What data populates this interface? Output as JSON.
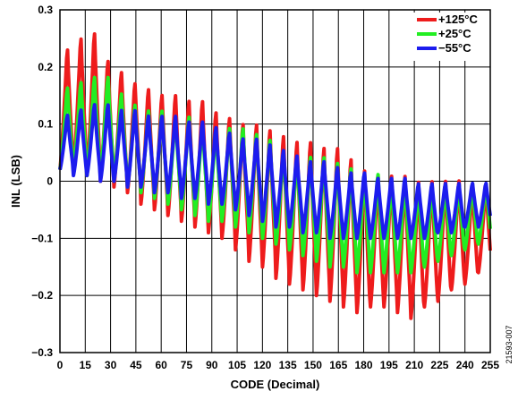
{
  "chart_data": {
    "type": "line",
    "xlabel": "CODE (Decimal)",
    "ylabel": "INL (LSB)",
    "xlim": [
      0,
      255
    ],
    "ylim": [
      -0.3,
      0.3
    ],
    "x_ticks": [
      0,
      15,
      30,
      45,
      60,
      75,
      90,
      105,
      120,
      135,
      150,
      165,
      180,
      195,
      210,
      225,
      240,
      255
    ],
    "y_ticks": [
      -0.3,
      -0.2,
      -0.1,
      0,
      0.1,
      0.2,
      0.3
    ],
    "y_tick_labels": [
      "−0.3",
      "−0.2",
      "−0.1",
      "0",
      "0.1",
      "0.2",
      "0.3"
    ],
    "grid": true,
    "legend_position": "top-right",
    "pattern_period_codes": 8,
    "series": [
      {
        "name": "+125°C",
        "color": "#ee1c1c",
        "peaks": [
          0.24,
          0.26,
          0.27,
          0.22,
          0.2,
          0.18,
          0.17,
          0.16,
          0.16,
          0.15,
          0.15,
          0.13,
          0.12,
          0.11,
          0.11,
          0.1,
          0.09,
          0.08,
          0.08,
          0.07,
          0.07,
          0.05,
          0.03,
          0.02,
          0.02,
          0.02,
          0.01,
          0.01,
          0.01,
          0.01,
          0.0,
          0.0
        ],
        "valleys": [
          0.02,
          0.02,
          0.01,
          0.0,
          -0.01,
          -0.02,
          -0.04,
          -0.05,
          -0.06,
          -0.07,
          -0.08,
          -0.09,
          -0.1,
          -0.12,
          -0.14,
          -0.15,
          -0.17,
          -0.18,
          -0.19,
          -0.2,
          -0.21,
          -0.22,
          -0.23,
          -0.22,
          -0.22,
          -0.23,
          -0.24,
          -0.22,
          -0.21,
          -0.19,
          -0.18,
          -0.16
        ]
      },
      {
        "name": "+25°C",
        "color": "#22ee22",
        "peaks": [
          0.17,
          0.18,
          0.19,
          0.19,
          0.16,
          0.14,
          0.13,
          0.13,
          0.12,
          0.12,
          0.11,
          0.1,
          0.1,
          0.1,
          0.09,
          0.08,
          0.06,
          0.05,
          0.05,
          0.05,
          0.04,
          0.03,
          0.02,
          0.02,
          0.01,
          0.01,
          0.0,
          0.0,
          0.0,
          0.0,
          0.0,
          0.0
        ],
        "valleys": [
          0.02,
          0.02,
          0.01,
          0.01,
          0.0,
          -0.01,
          -0.02,
          -0.03,
          -0.04,
          -0.05,
          -0.06,
          -0.07,
          -0.07,
          -0.08,
          -0.09,
          -0.1,
          -0.11,
          -0.12,
          -0.13,
          -0.14,
          -0.15,
          -0.15,
          -0.16,
          -0.16,
          -0.16,
          -0.16,
          -0.16,
          -0.15,
          -0.14,
          -0.13,
          -0.12,
          -0.11
        ]
      },
      {
        "name": "−55°C",
        "color": "#1c1cee",
        "peaks": [
          0.12,
          0.13,
          0.14,
          0.14,
          0.13,
          0.13,
          0.12,
          0.12,
          0.12,
          0.11,
          0.11,
          0.1,
          0.09,
          0.08,
          0.08,
          0.07,
          0.06,
          0.05,
          0.04,
          0.04,
          0.03,
          0.02,
          0.02,
          0.01,
          0.01,
          0.01,
          0.0,
          0.0,
          0.0,
          0.0,
          0.0,
          0.0
        ],
        "valleys": [
          0.02,
          0.01,
          0.01,
          0.0,
          0.0,
          -0.01,
          -0.01,
          -0.02,
          -0.02,
          -0.03,
          -0.03,
          -0.04,
          -0.04,
          -0.05,
          -0.06,
          -0.07,
          -0.08,
          -0.08,
          -0.09,
          -0.09,
          -0.1,
          -0.1,
          -0.1,
          -0.1,
          -0.1,
          -0.1,
          -0.1,
          -0.1,
          -0.09,
          -0.09,
          -0.08,
          -0.08
        ]
      }
    ]
  },
  "side_code": "21593-007"
}
